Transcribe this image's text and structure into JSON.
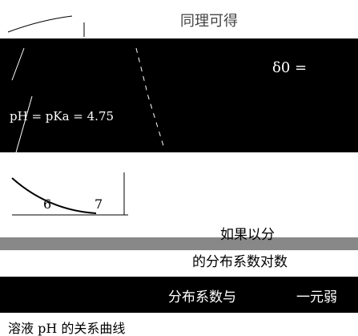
{
  "header": {
    "text": "同理可得"
  },
  "formula": {
    "delta": "δ0 =",
    "ph_equation": "pH = pKa = 4.75"
  },
  "axis": {
    "ticks": [
      "6",
      "7"
    ]
  },
  "paragraph": {
    "lines": [
      "如果以分",
      "的分布系数对数",
      "分布系数与",
      "一元弱",
      "溶液 pH 的关系曲线"
    ]
  }
}
